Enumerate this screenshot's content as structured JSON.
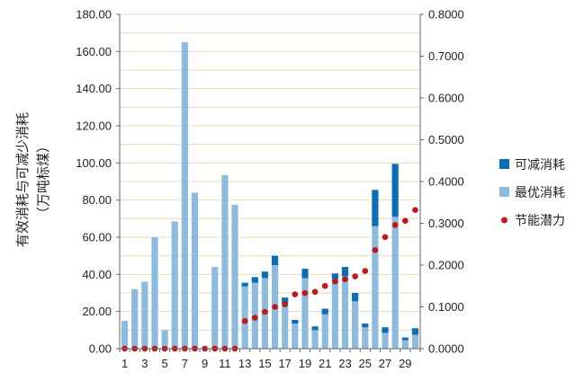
{
  "chart_data": {
    "type": "bar",
    "ylabel_line1": "有效消耗与可减少消耗",
    "ylabel_line2": "（万吨标煤）",
    "left_axis": {
      "min": 0,
      "max": 180,
      "step": 20,
      "tick_labels": [
        "0.00",
        "20.00",
        "40.00",
        "60.00",
        "80.00",
        "100.00",
        "120.00",
        "140.00",
        "160.00",
        "180.00"
      ]
    },
    "right_axis": {
      "min": 0,
      "max": 0.8,
      "step": 0.1,
      "tick_labels": [
        "0.0000",
        "0.1000",
        "0.2000",
        "0.3000",
        "0.4000",
        "0.5000",
        "0.6000",
        "0.7000",
        "0.8000"
      ]
    },
    "x_tick_labels": [
      "1",
      "3",
      "5",
      "7",
      "9",
      "11",
      "13",
      "15",
      "17",
      "19",
      "21",
      "23",
      "25",
      "27",
      "29"
    ],
    "categories": [
      1,
      2,
      3,
      4,
      5,
      6,
      7,
      8,
      9,
      10,
      11,
      12,
      13,
      14,
      15,
      16,
      17,
      18,
      19,
      20,
      21,
      22,
      23,
      24,
      25,
      26,
      27,
      28,
      29,
      30
    ],
    "series": [
      {
        "name": "可减消耗",
        "kind": "bar-stack-top",
        "color": "#0b6db5",
        "values": [
          0,
          0,
          0,
          0,
          0,
          0,
          0,
          0,
          0,
          0,
          0,
          0,
          2.0,
          3.0,
          3.5,
          5.0,
          3.0,
          2.0,
          5.0,
          2.0,
          3.0,
          3.0,
          5.0,
          4.5,
          2.0,
          19.5,
          3.0,
          28.5,
          1.5,
          3.5
        ]
      },
      {
        "name": "最优消耗",
        "kind": "bar-stack-base",
        "color": "#8dbbdf",
        "values": [
          15,
          32,
          36,
          60,
          10,
          68.5,
          165,
          84,
          0,
          44,
          93.5,
          77.5,
          33.5,
          35.5,
          38,
          45,
          24.5,
          13.5,
          38,
          10,
          18.5,
          37.5,
          39,
          25.5,
          11.5,
          66,
          8.5,
          71,
          4.5,
          7.5
        ]
      },
      {
        "name": "节能潜力",
        "kind": "point",
        "color": "#c0161c",
        "values": [
          0,
          0,
          0,
          0,
          0,
          0,
          0,
          0,
          0,
          0,
          0,
          0,
          0.066,
          0.074,
          0.088,
          0.1,
          0.106,
          0.13,
          0.133,
          0.136,
          0.15,
          0.161,
          0.166,
          0.173,
          0.186,
          0.236,
          0.267,
          0.296,
          0.306,
          0.332
        ]
      }
    ],
    "legend_position": "right",
    "grid": "horizontal"
  }
}
